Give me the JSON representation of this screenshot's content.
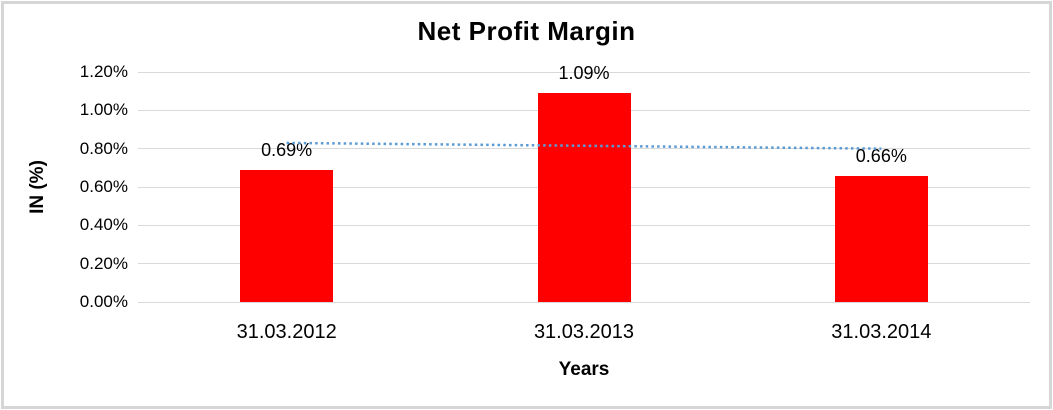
{
  "chart_data": {
    "type": "bar",
    "title": "Net Profit Margin",
    "xlabel": "Years",
    "ylabel": "IN (%)",
    "categories": [
      "31.03.2012",
      "31.03.2013",
      "31.03.2014"
    ],
    "values": [
      0.69,
      1.09,
      0.66
    ],
    "data_labels": [
      "0.69%",
      "1.09%",
      "0.66%"
    ],
    "ylim": [
      0,
      1.2
    ],
    "ytick_step": 0.2,
    "ytick_labels": [
      "0.00%",
      "0.20%",
      "0.40%",
      "0.60%",
      "0.80%",
      "1.00%",
      "1.20%"
    ],
    "grid": "horizontal",
    "legend": "none",
    "bar_color": "#ff0000",
    "gridline_color": "#d9d9d9",
    "text_color": "#000000",
    "trendline": {
      "type": "linear",
      "style": "dotted",
      "color": "#5b9bd5",
      "start_value": 0.83,
      "end_value": 0.8
    }
  }
}
